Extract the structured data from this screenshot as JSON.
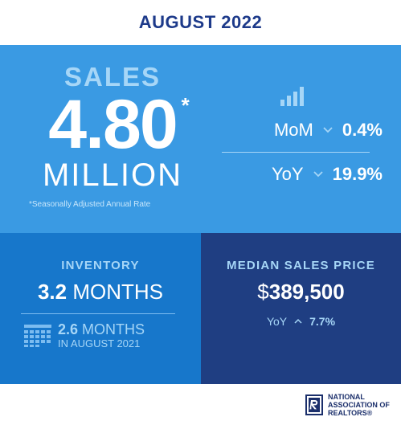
{
  "header": {
    "title": "AUGUST 2022"
  },
  "sales": {
    "title": "SALES",
    "value": "4.80",
    "asterisk": "*",
    "unit": "MILLION",
    "footnote": "*Seasonally Adjusted Annual Rate",
    "icon": "bar-chart-icon",
    "mom": {
      "label": "MoM",
      "direction": "down",
      "value": "0.4%"
    },
    "yoy": {
      "label": "YoY",
      "direction": "down",
      "value": "19.9%"
    }
  },
  "inventory": {
    "title": "INVENTORY",
    "value": "3.2",
    "unit": "MONTHS",
    "prev_value": "2.6",
    "prev_unit": "MONTHS",
    "prev_period": "IN AUGUST 2021",
    "icon": "calendar-icon"
  },
  "price": {
    "title": "MEDIAN SALES PRICE",
    "currency": "$",
    "value": "389,500",
    "yoy": {
      "label": "YoY",
      "direction": "up",
      "value": "7.7%"
    }
  },
  "footer": {
    "logo_line1": "NATIONAL",
    "logo_line2": "ASSOCIATION OF",
    "logo_line3": "REALTORS®",
    "logo_mark": "R"
  },
  "colors": {
    "header_text": "#1d3a8a",
    "sales_bg": "#3a9ae3",
    "inventory_bg": "#1777cb",
    "price_bg": "#1f3e82",
    "accent_light": "#a6d6f7"
  }
}
